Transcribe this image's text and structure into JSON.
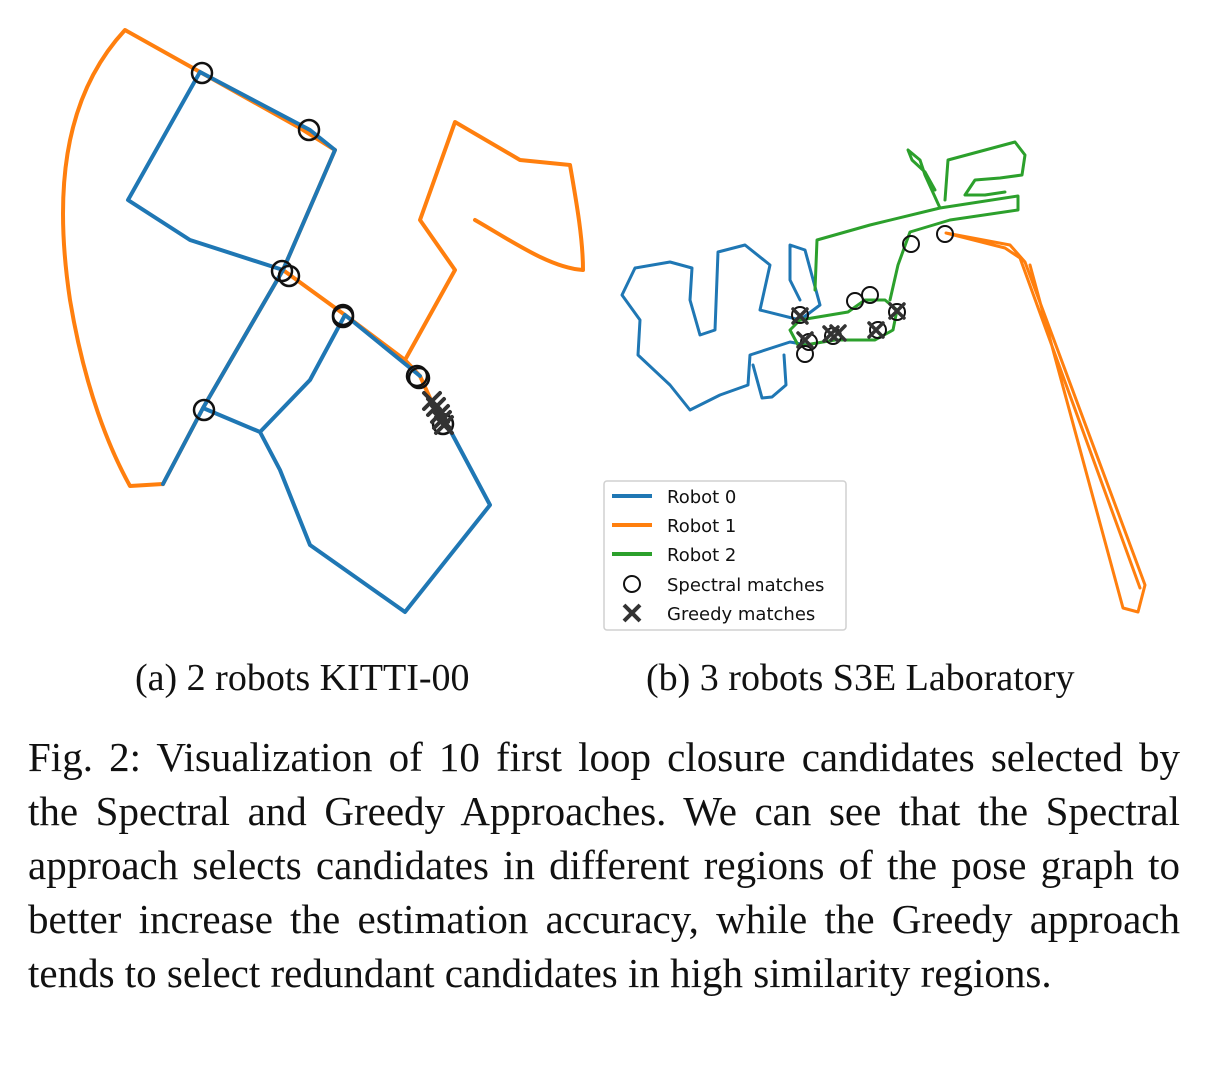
{
  "colors": {
    "robot0": "#1f77b4",
    "robot1": "#ff7f0e",
    "robot2": "#2ca02c",
    "marker": "#111111"
  },
  "subfigure_a": {
    "caption": "(a) 2 robots KITTI-00"
  },
  "subfigure_b": {
    "caption": "(b) 3 robots S3E Laboratory"
  },
  "legend": {
    "entries": [
      {
        "label": "Robot 0",
        "kind": "line",
        "color": "#1f77b4"
      },
      {
        "label": "Robot 1",
        "kind": "line",
        "color": "#ff7f0e"
      },
      {
        "label": "Robot 2",
        "kind": "line",
        "color": "#2ca02c"
      },
      {
        "label": "Spectral matches",
        "kind": "circle"
      },
      {
        "label": "Greedy matches",
        "kind": "x"
      }
    ]
  },
  "caption": {
    "text": "Fig. 2: Visualization of 10 first loop closure candidates selected by the Spectral and Greedy Approaches. We can see that the Spectral approach selects candidates in different regions of the pose graph to better increase the estimation accuracy, while the Greedy approach tends to select redundant candidates in high similarity regions."
  }
}
